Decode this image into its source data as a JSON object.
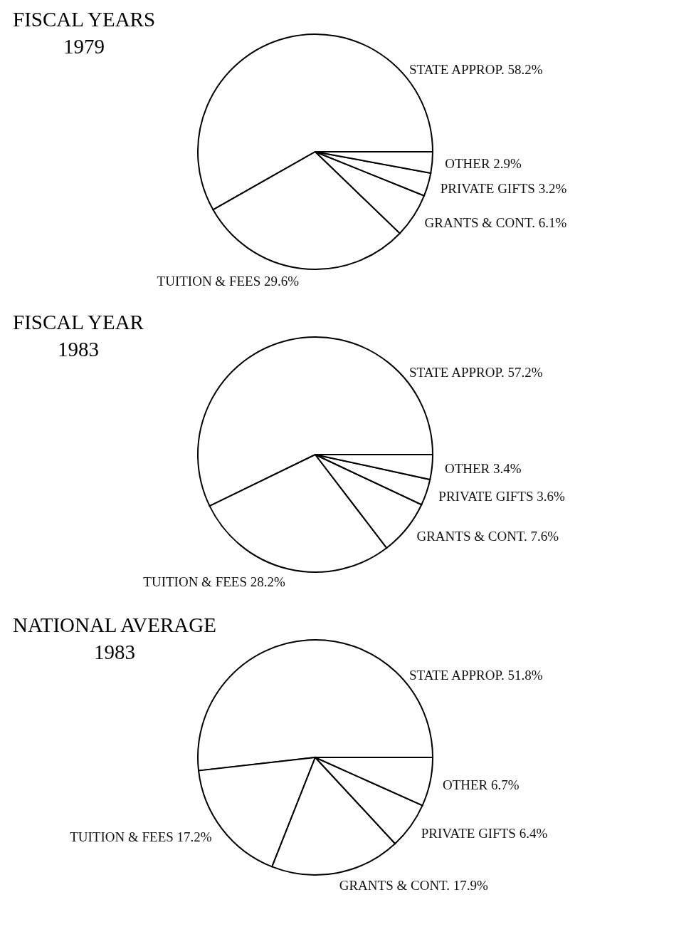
{
  "chart_data": [
    {
      "type": "pie",
      "title": "FISCAL YEARS\n1979",
      "categories": [
        "STATE APPROP.",
        "TUITION & FEES",
        "GRANTS & CONT.",
        "PRIVATE GIFTS",
        "OTHER"
      ],
      "values": [
        58.2,
        29.6,
        6.1,
        3.2,
        2.9
      ],
      "value_labels": [
        "58.2%",
        "29.6%",
        "6.1%",
        "3.2%",
        "2.9%"
      ],
      "colors": [
        "#ffffff",
        "#ffffff",
        "#ffffff",
        "#ffffff",
        "#ffffff"
      ]
    },
    {
      "type": "pie",
      "title": "FISCAL YEAR\n1983",
      "categories": [
        "STATE APPROP.",
        "TUITION & FEES",
        "GRANTS & CONT.",
        "PRIVATE GIFTS",
        "OTHER"
      ],
      "values": [
        57.2,
        28.2,
        7.6,
        3.6,
        3.4
      ],
      "value_labels": [
        "57.2%",
        "28.2%",
        "7.6%",
        "3.6%",
        "3.4%"
      ],
      "colors": [
        "#ffffff",
        "#ffffff",
        "#ffffff",
        "#ffffff",
        "#ffffff"
      ]
    },
    {
      "type": "pie",
      "title": "NATIONAL AVERAGE\n1983",
      "categories": [
        "STATE APPROP.",
        "TUITION & FEES",
        "GRANTS & CONT.",
        "PRIVATE GIFTS",
        "OTHER"
      ],
      "values": [
        51.8,
        17.2,
        17.9,
        6.4,
        6.7
      ],
      "value_labels": [
        "51.8%",
        "17.2%",
        "17.9%",
        "6.4%",
        "6.7%"
      ],
      "colors": [
        "#ffffff",
        "#ffffff",
        "#ffffff",
        "#ffffff",
        "#ffffff"
      ]
    }
  ]
}
